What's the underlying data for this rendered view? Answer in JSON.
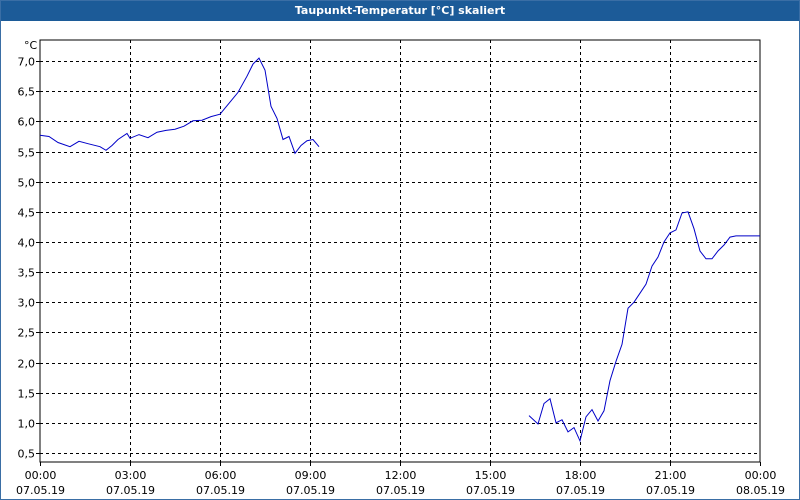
{
  "window": {
    "title": "Taupunkt-Temperatur [°C] skaliert"
  },
  "chart_data": {
    "type": "line",
    "title": "Taupunkt-Temperatur [°C] skaliert",
    "unit": "°C",
    "ylim": [
      0.35,
      7.35
    ],
    "y_ticks": [
      "7,0",
      "6,5",
      "6,0",
      "5,5",
      "5,0",
      "4,5",
      "4,0",
      "3,5",
      "3,0",
      "2,5",
      "2,0",
      "1,5",
      "1,0",
      "0,5"
    ],
    "y_tick_values": [
      7.0,
      6.5,
      6.0,
      5.5,
      5.0,
      4.5,
      4.0,
      3.5,
      3.0,
      2.5,
      2.0,
      1.5,
      1.0,
      0.5
    ],
    "xlim": [
      0,
      24
    ],
    "x_ticks": [
      {
        "time": "00:00",
        "date": "07.05.19",
        "hour": 0
      },
      {
        "time": "03:00",
        "date": "07.05.19",
        "hour": 3
      },
      {
        "time": "06:00",
        "date": "07.05.19",
        "hour": 6
      },
      {
        "time": "09:00",
        "date": "07.05.19",
        "hour": 9
      },
      {
        "time": "12:00",
        "date": "07.05.19",
        "hour": 12
      },
      {
        "time": "15:00",
        "date": "07.05.19",
        "hour": 15
      },
      {
        "time": "18:00",
        "date": "07.05.19",
        "hour": 18
      },
      {
        "time": "21:00",
        "date": "07.05.19",
        "hour": 21
      },
      {
        "time": "00:00",
        "date": "08.05.19",
        "hour": 24
      }
    ],
    "grid": true,
    "series_color": "#0000c8",
    "segments": [
      {
        "hours": [
          0.0,
          0.3,
          0.6,
          1.0,
          1.3,
          1.6,
          2.0,
          2.2,
          2.4,
          2.6,
          2.9,
          3.0,
          3.3,
          3.6,
          3.9,
          4.2,
          4.5,
          4.8,
          5.1,
          5.4,
          5.7,
          6.0,
          6.3,
          6.6,
          6.9,
          7.1,
          7.3,
          7.5,
          7.7,
          7.9,
          8.1,
          8.3,
          8.5,
          8.7,
          8.9,
          9.1,
          9.3
        ],
        "values": [
          5.77,
          5.75,
          5.65,
          5.58,
          5.67,
          5.63,
          5.58,
          5.52,
          5.6,
          5.7,
          5.8,
          5.72,
          5.78,
          5.73,
          5.82,
          5.85,
          5.87,
          5.92,
          6.01,
          6.02,
          6.08,
          6.12,
          6.3,
          6.48,
          6.75,
          6.95,
          7.05,
          6.85,
          6.25,
          6.05,
          5.7,
          5.75,
          5.47,
          5.6,
          5.68,
          5.7,
          5.58
        ]
      },
      {
        "hours": [
          16.3,
          16.6,
          16.8,
          17.0,
          17.2,
          17.4,
          17.6,
          17.8,
          18.0,
          18.2,
          18.4,
          18.6,
          18.8,
          19.0,
          19.2,
          19.4,
          19.6,
          19.8,
          20.0,
          20.2,
          20.4,
          20.6,
          20.8,
          21.0,
          21.2,
          21.4,
          21.6,
          21.8,
          22.0,
          22.2,
          22.4,
          22.6,
          22.8,
          23.0,
          23.2,
          23.4,
          23.6,
          23.8,
          24.0
        ],
        "values": [
          1.12,
          0.98,
          1.32,
          1.4,
          1.0,
          1.05,
          0.85,
          0.92,
          0.7,
          1.1,
          1.22,
          1.03,
          1.2,
          1.7,
          2.02,
          2.3,
          2.9,
          3.0,
          3.15,
          3.3,
          3.6,
          3.75,
          4.0,
          4.15,
          4.2,
          4.48,
          4.5,
          4.22,
          3.85,
          3.72,
          3.72,
          3.85,
          3.95,
          4.08,
          4.1,
          4.1,
          4.1,
          4.1,
          4.1
        ]
      }
    ]
  }
}
